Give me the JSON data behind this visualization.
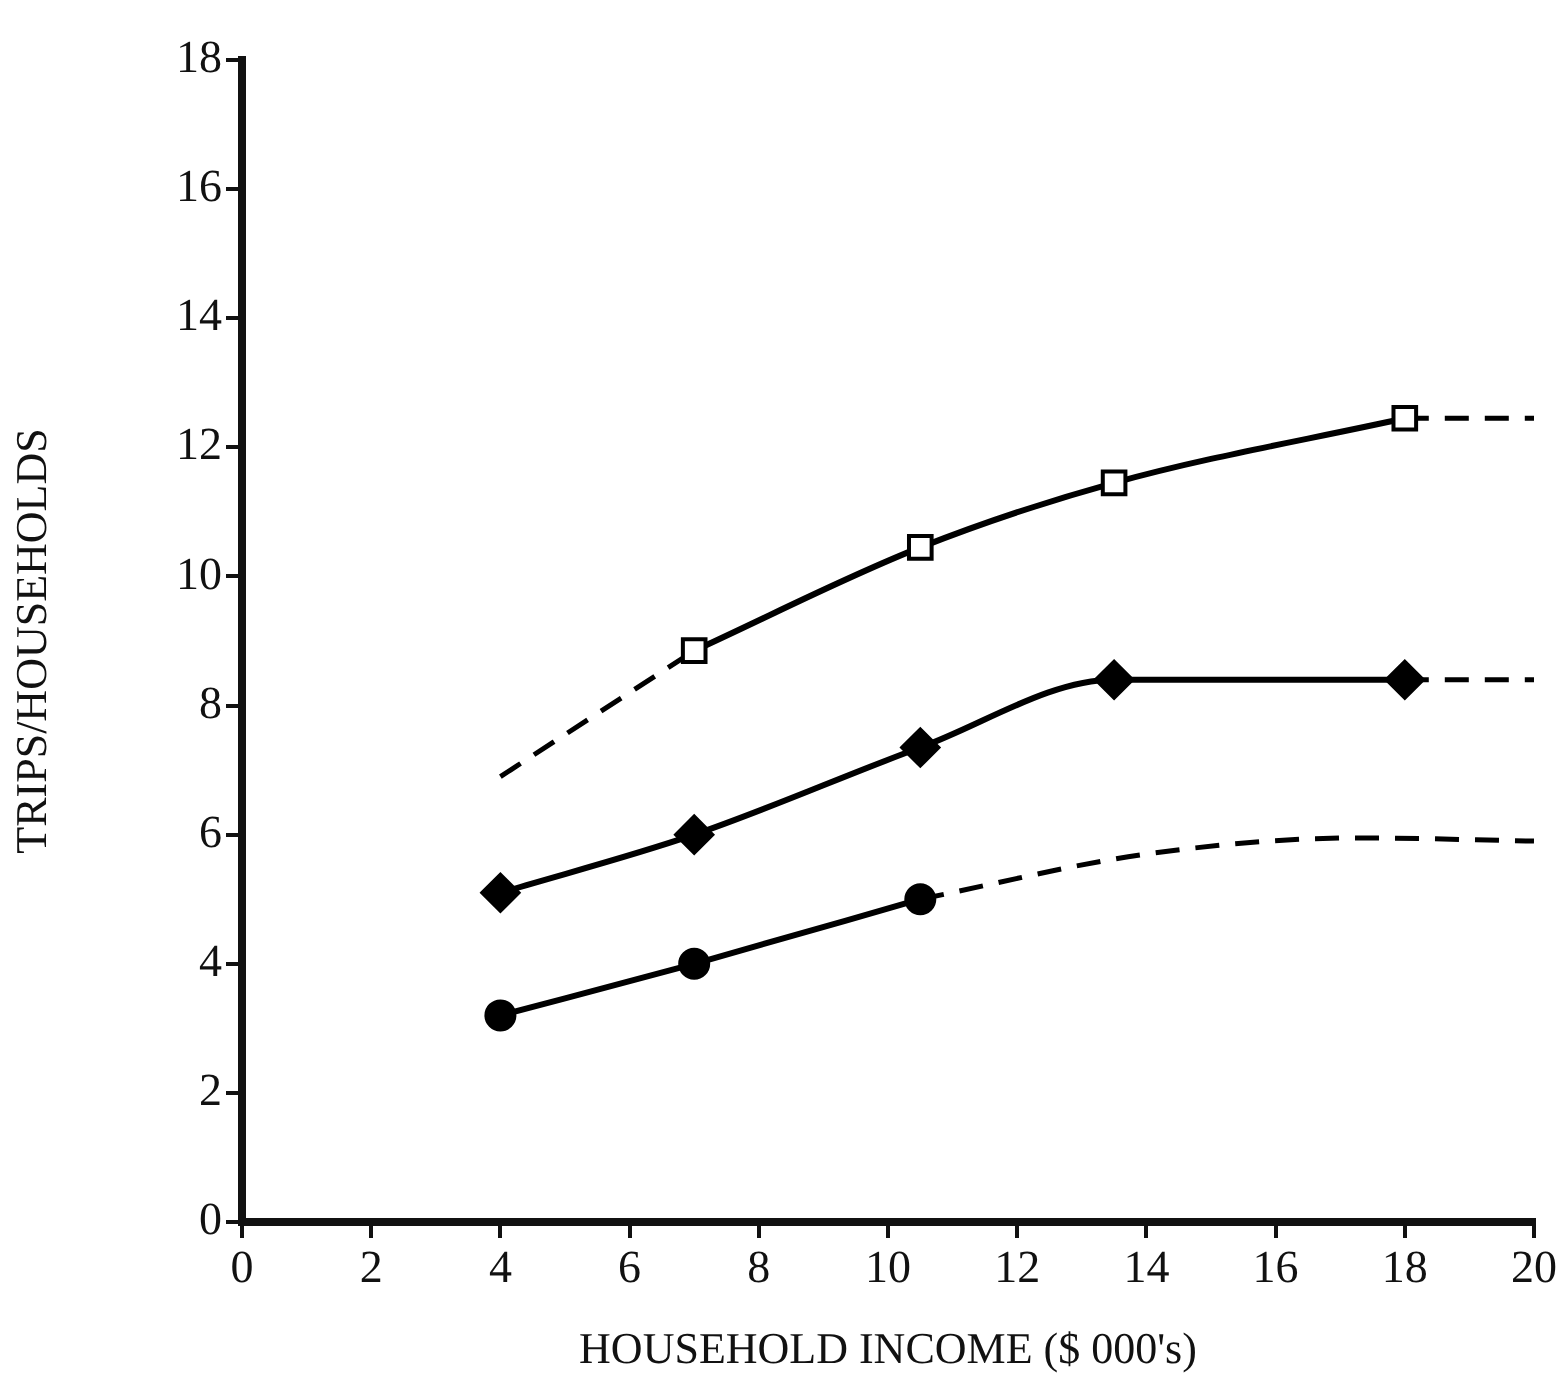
{
  "chart_data": {
    "type": "line",
    "xlabel": "HOUSEHOLD INCOME ($ 000's)",
    "ylabel": "TRIPS/HOUSEHOLDS",
    "xlim": [
      0,
      20
    ],
    "xticks": [
      0,
      2,
      4,
      6,
      8,
      10,
      12,
      14,
      16,
      18,
      20
    ],
    "ylim": [
      0,
      18
    ],
    "yticks": [
      0,
      2,
      4,
      6,
      8,
      10,
      12,
      14,
      16,
      18
    ],
    "grid": false,
    "legend": false,
    "series": [
      {
        "color": "#000000",
        "marker": "square",
        "line_style": "solid",
        "x": [
          7,
          10.5,
          13.5,
          18
        ],
        "values": [
          8.85,
          10.45,
          11.45,
          12.45
        ]
      },
      {
        "color": "#000000",
        "marker": "none",
        "line_style": "dashed",
        "x": [
          4,
          7
        ],
        "values": [
          6.9,
          8.85
        ]
      },
      {
        "color": "#000000",
        "marker": "none",
        "line_style": "dashed",
        "x": [
          18,
          20
        ],
        "values": [
          12.45,
          12.45
        ]
      },
      {
        "color": "#000000",
        "marker": "diamond",
        "line_style": "solid",
        "x": [
          4,
          7,
          10.5,
          13.5,
          18
        ],
        "values": [
          5.1,
          6.0,
          7.35,
          8.4,
          8.4
        ]
      },
      {
        "color": "#000000",
        "marker": "none",
        "line_style": "dashed",
        "x": [
          18,
          20
        ],
        "values": [
          8.4,
          8.4
        ]
      },
      {
        "color": "#000000",
        "marker": "circle",
        "line_style": "solid",
        "x": [
          4,
          7,
          10.5
        ],
        "values": [
          3.2,
          4.0,
          5.0
        ]
      },
      {
        "color": "#000000",
        "marker": "none",
        "line_style": "dashed",
        "x": [
          10.5,
          14,
          17.3,
          20
        ],
        "values": [
          5.0,
          5.7,
          5.95,
          5.9
        ]
      }
    ]
  }
}
